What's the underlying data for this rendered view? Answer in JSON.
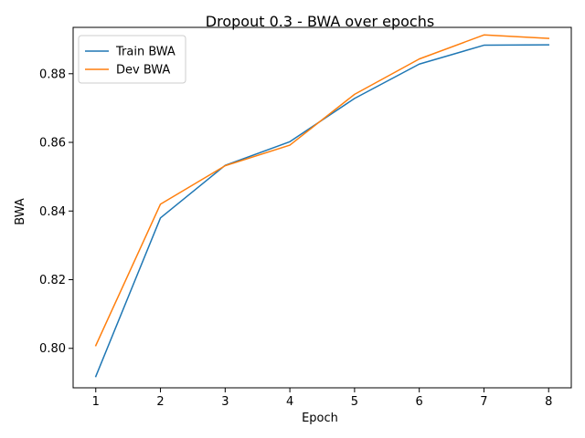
{
  "chart_data": {
    "type": "line",
    "title": "Dropout 0.3 - BWA over epochs",
    "xlabel": "Epoch",
    "ylabel": "BWA",
    "x": [
      1,
      2,
      3,
      4,
      5,
      6,
      7,
      8
    ],
    "xticks": [
      "1",
      "2",
      "3",
      "4",
      "5",
      "6",
      "7",
      "8"
    ],
    "yticks": [
      "0.80",
      "0.82",
      "0.84",
      "0.86",
      "0.88"
    ],
    "xlim": [
      0.65,
      8.35
    ],
    "ylim": [
      0.7885,
      0.8935
    ],
    "grid": false,
    "legend_position": "top-left",
    "series": [
      {
        "name": "Train BWA",
        "color": "#1f77b4",
        "values": [
          0.7918,
          0.838,
          0.8533,
          0.8602,
          0.8728,
          0.8828,
          0.8883,
          0.8884
        ]
      },
      {
        "name": "Dev BWA",
        "color": "#ff7f0e",
        "values": [
          0.8008,
          0.842,
          0.8532,
          0.8592,
          0.874,
          0.8843,
          0.8913,
          0.8903
        ]
      }
    ]
  }
}
